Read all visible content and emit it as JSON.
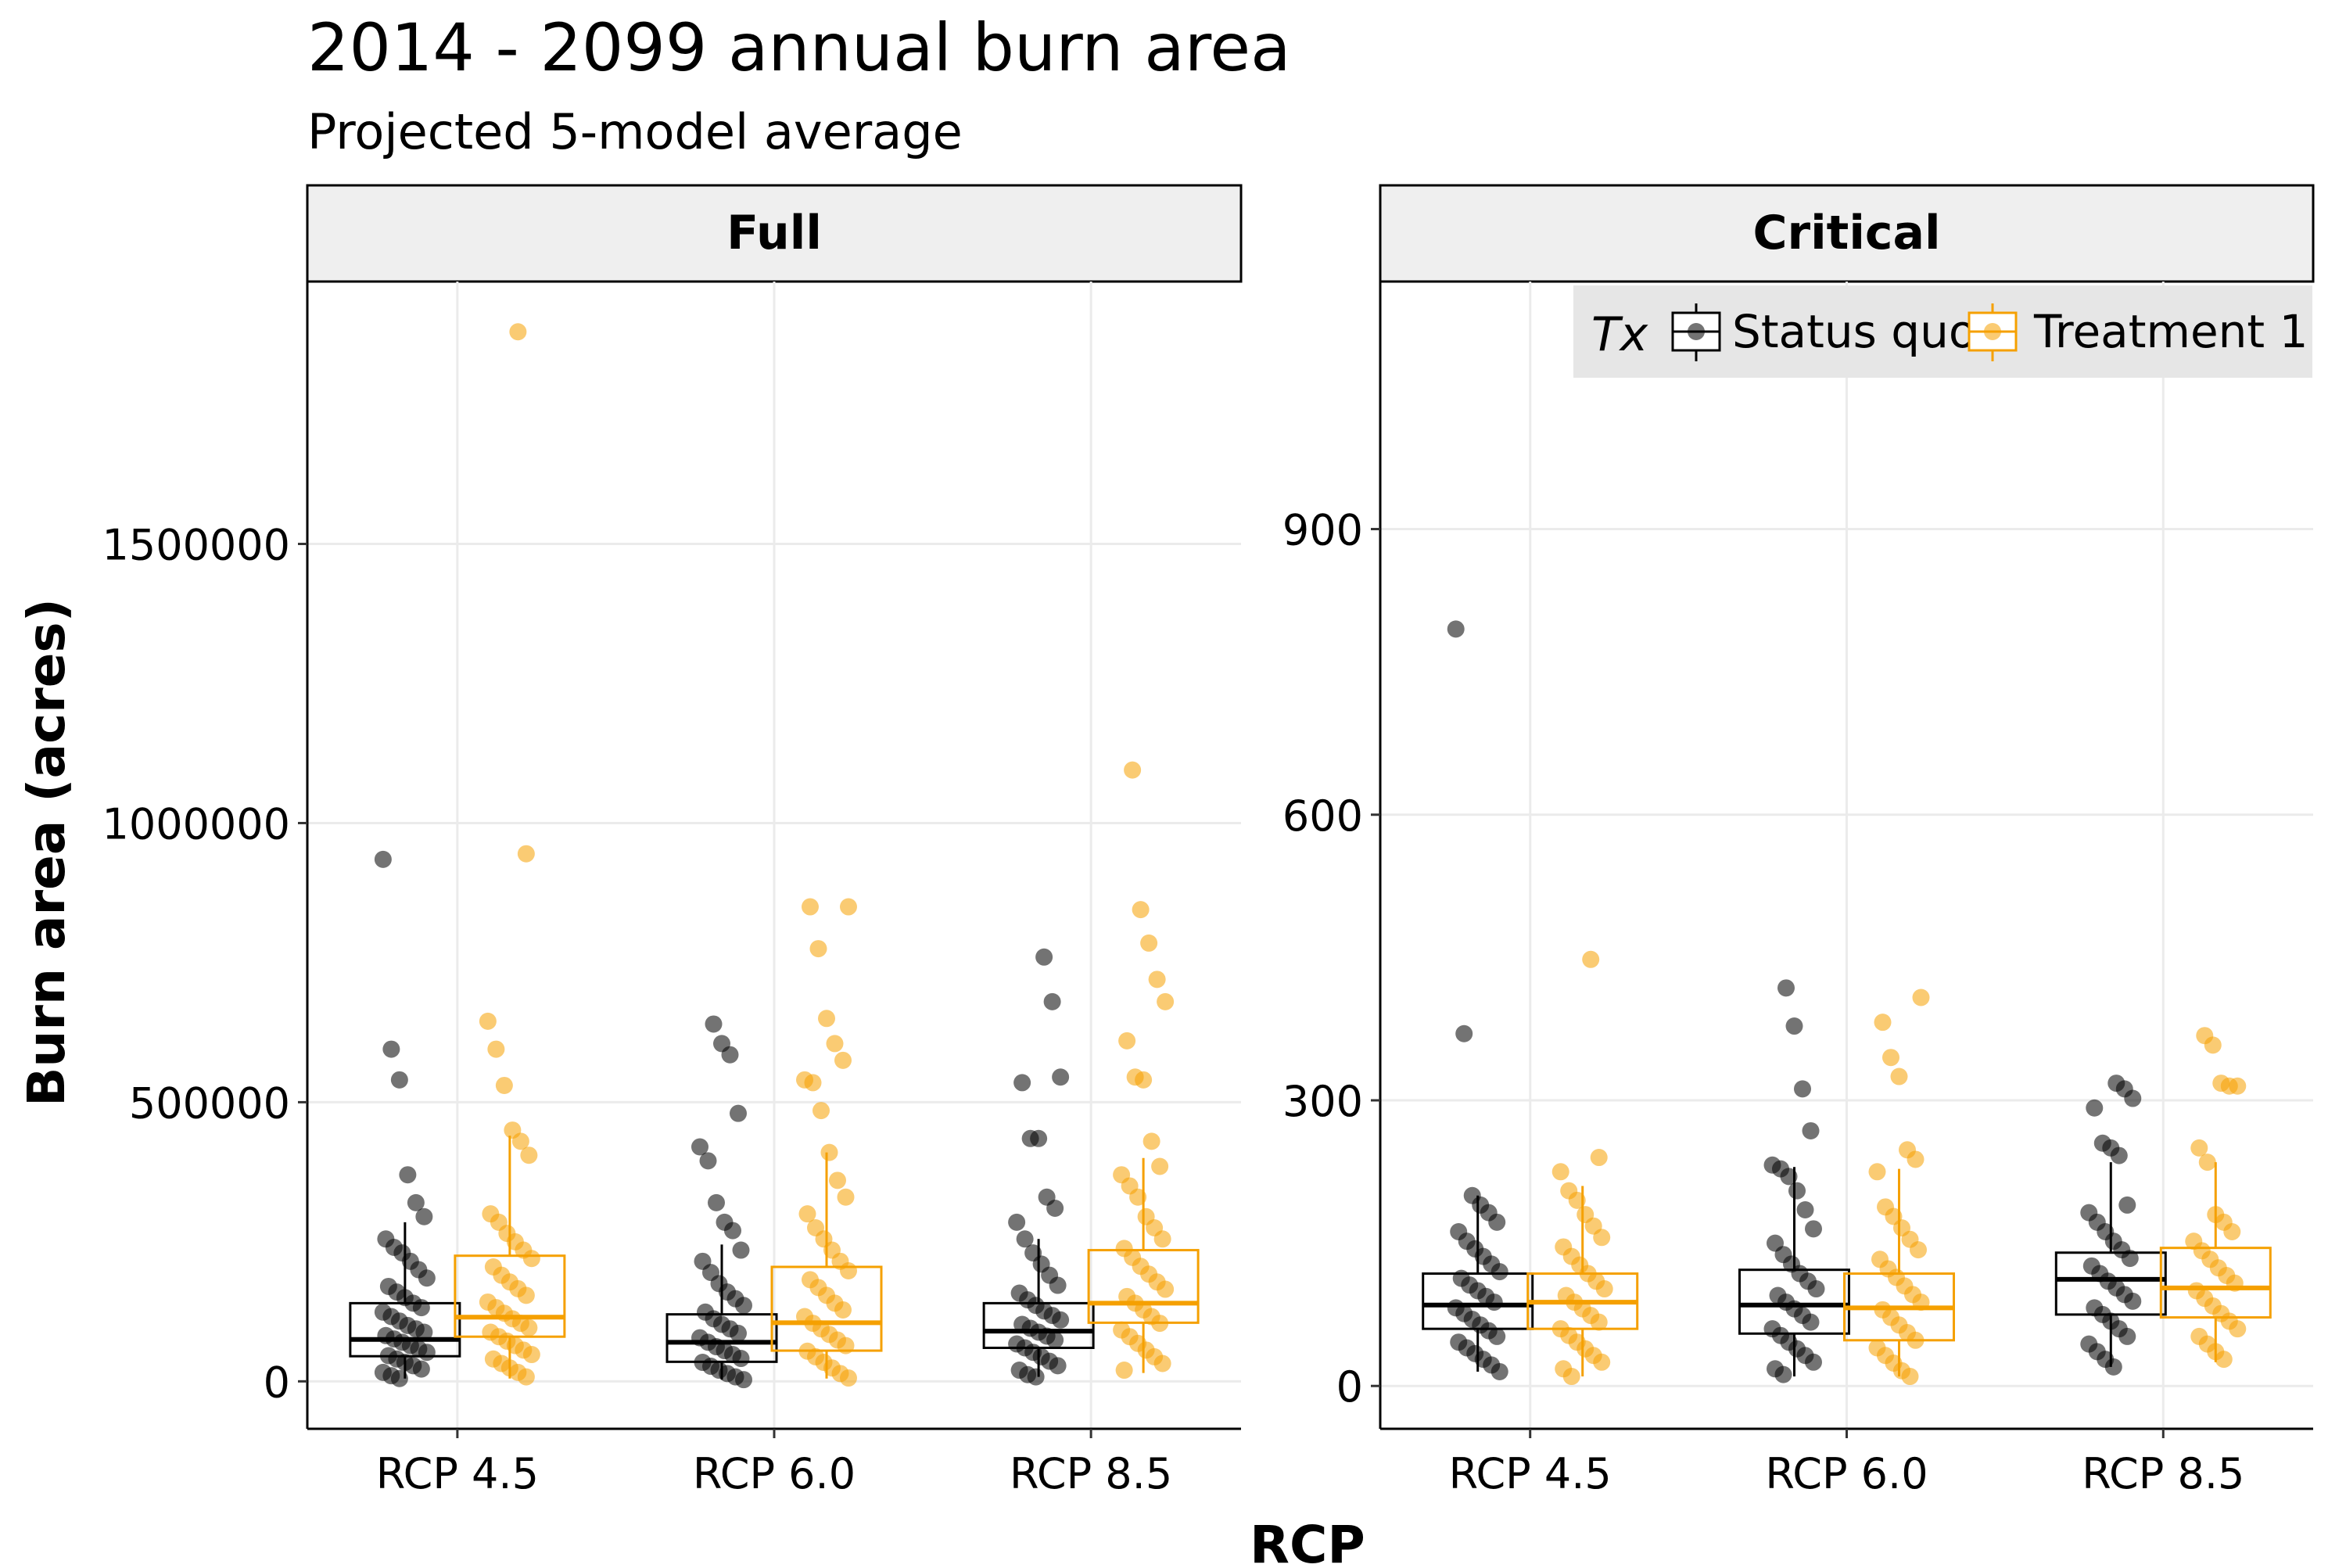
{
  "chart_data": {
    "type": "boxplot",
    "title": "2014 - 2099 annual burn area",
    "subtitle": "Projected 5-model average",
    "xlabel": "RCP",
    "ylabel": "Burn area (acres)",
    "categories": [
      "RCP 4.5",
      "RCP 6.0",
      "RCP 8.5"
    ],
    "legend": {
      "title": "Tx",
      "position": "top-right",
      "entries": [
        {
          "name": "Status quo",
          "color": "#000000"
        },
        {
          "name": "Treatment 1",
          "color": "#f5a000"
        }
      ]
    },
    "grid": true,
    "panels": [
      {
        "label": "Full",
        "ylim": [
          -85000,
          1970000
        ],
        "yticks": [
          0,
          500000,
          1000000,
          1500000
        ],
        "ytick_labels": [
          "0",
          "500000",
          "1000000",
          "1500000"
        ],
        "series": [
          {
            "name": "Status quo",
            "boxes": [
              {
                "category": "RCP 4.5",
                "q1": 45000,
                "median": 75000,
                "q3": 140000,
                "whisker_low": 5000,
                "whisker_high": 285000
              },
              {
                "category": "RCP 6.0",
                "q1": 35000,
                "median": 70000,
                "q3": 120000,
                "whisker_low": 3000,
                "whisker_high": 245000
              },
              {
                "category": "RCP 8.5",
                "q1": 60000,
                "median": 90000,
                "q3": 140000,
                "whisker_low": 8000,
                "whisker_high": 255000
              }
            ],
            "points": [
              {
                "category": "RCP 4.5",
                "values": [
                  935000,
                  595000,
                  540000,
                  370000,
                  320000,
                  295000,
                  255000,
                  240000,
                  230000,
                  215000,
                  200000,
                  185000,
                  170000,
                  160000,
                  150000,
                  140000,
                  132000,
                  124000,
                  116000,
                  108000,
                  100000,
                  94000,
                  88000,
                  82000,
                  76000,
                  70000,
                  64000,
                  58000,
                  52000,
                  46000,
                  40000,
                  34000,
                  28000,
                  22000,
                  16000,
                  10000,
                  5000
                ]
              },
              {
                "category": "RCP 6.0",
                "values": [
                  640000,
                  605000,
                  585000,
                  480000,
                  420000,
                  395000,
                  320000,
                  285000,
                  270000,
                  235000,
                  215000,
                  195000,
                  175000,
                  160000,
                  148000,
                  136000,
                  124000,
                  112000,
                  102000,
                  94000,
                  86000,
                  78000,
                  70000,
                  62000,
                  55000,
                  48000,
                  41000,
                  34000,
                  27000,
                  20000,
                  14000,
                  8000,
                  3000
                ]
              },
              {
                "category": "RCP 8.5",
                "values": [
                  760000,
                  680000,
                  545000,
                  535000,
                  435000,
                  435000,
                  330000,
                  310000,
                  285000,
                  255000,
                  230000,
                  210000,
                  190000,
                  172000,
                  158000,
                  146000,
                  136000,
                  126000,
                  118000,
                  110000,
                  102000,
                  95000,
                  88000,
                  81000,
                  74000,
                  67000,
                  60000,
                  52000,
                  44000,
                  36000,
                  28000,
                  20000,
                  12000,
                  8000
                ]
              }
            ]
          },
          {
            "name": "Treatment 1",
            "boxes": [
              {
                "category": "RCP 4.5",
                "q1": 80000,
                "median": 115000,
                "q3": 225000,
                "whisker_low": 5000,
                "whisker_high": 440000
              },
              {
                "category": "RCP 6.0",
                "q1": 55000,
                "median": 105000,
                "q3": 205000,
                "whisker_low": 5000,
                "whisker_high": 410000
              },
              {
                "category": "RCP 8.5",
                "q1": 105000,
                "median": 140000,
                "q3": 235000,
                "whisker_low": 15000,
                "whisker_high": 400000
              }
            ],
            "points": [
              {
                "category": "RCP 4.5",
                "values": [
                  1880000,
                  945000,
                  645000,
                  595000,
                  530000,
                  450000,
                  430000,
                  405000,
                  300000,
                  285000,
                  265000,
                  250000,
                  235000,
                  220000,
                  205000,
                  190000,
                  178000,
                  166000,
                  154000,
                  142000,
                  132000,
                  122000,
                  112000,
                  104000,
                  96000,
                  88000,
                  80000,
                  72000,
                  64000,
                  56000,
                  48000,
                  40000,
                  32000,
                  24000,
                  16000,
                  8000
                ]
              },
              {
                "category": "RCP 6.0",
                "values": [
                  850000,
                  850000,
                  775000,
                  650000,
                  605000,
                  575000,
                  540000,
                  535000,
                  485000,
                  410000,
                  360000,
                  330000,
                  300000,
                  275000,
                  255000,
                  235000,
                  215000,
                  198000,
                  182000,
                  168000,
                  154000,
                  140000,
                  128000,
                  116000,
                  104000,
                  94000,
                  84000,
                  74000,
                  64000,
                  54000,
                  44000,
                  34000,
                  24000,
                  14000,
                  6000
                ]
              },
              {
                "category": "RCP 8.5",
                "values": [
                  1095000,
                  845000,
                  785000,
                  720000,
                  680000,
                  610000,
                  545000,
                  540000,
                  430000,
                  385000,
                  370000,
                  350000,
                  330000,
                  295000,
                  275000,
                  255000,
                  238000,
                  222000,
                  206000,
                  192000,
                  178000,
                  165000,
                  152000,
                  140000,
                  128000,
                  116000,
                  104000,
                  92000,
                  80000,
                  68000,
                  56000,
                  44000,
                  32000,
                  20000
                ]
              }
            ]
          }
        ]
      },
      {
        "label": "Critical",
        "ylim": [
          -45,
          1160
        ],
        "yticks": [
          0,
          300,
          600,
          900
        ],
        "ytick_labels": [
          "0",
          "300",
          "600",
          "900"
        ],
        "series": [
          {
            "name": "Status quo",
            "boxes": [
              {
                "category": "RCP 4.5",
                "q1": 60,
                "median": 85,
                "q3": 118,
                "whisker_low": 15,
                "whisker_high": 200
              },
              {
                "category": "RCP 6.0",
                "q1": 55,
                "median": 85,
                "q3": 122,
                "whisker_low": 10,
                "whisker_high": 230
              },
              {
                "category": "RCP 8.5",
                "q1": 75,
                "median": 112,
                "q3": 140,
                "whisker_low": 20,
                "whisker_high": 235
              }
            ],
            "points": [
              {
                "category": "RCP 4.5",
                "values": [
                  795,
                  370,
                  200,
                  190,
                  182,
                  172,
                  162,
                  152,
                  144,
                  136,
                  128,
                  120,
                  113,
                  106,
                  100,
                  94,
                  88,
                  82,
                  76,
                  70,
                  64,
                  58,
                  52,
                  46,
                  40,
                  34,
                  28,
                  22,
                  15
                ]
              },
              {
                "category": "RCP 6.0",
                "values": [
                  418,
                  378,
                  312,
                  268,
                  232,
                  228,
                  220,
                  205,
                  185,
                  165,
                  150,
                  138,
                  128,
                  118,
                  110,
                  102,
                  95,
                  88,
                  81,
                  74,
                  67,
                  60,
                  53,
                  46,
                  39,
                  32,
                  25,
                  18,
                  12
                ]
              },
              {
                "category": "RCP 8.5",
                "values": [
                  318,
                  312,
                  302,
                  292,
                  255,
                  250,
                  242,
                  190,
                  182,
                  172,
                  162,
                  152,
                  143,
                  134,
                  126,
                  118,
                  110,
                  103,
                  96,
                  89,
                  82,
                  75,
                  68,
                  60,
                  52,
                  44,
                  36,
                  28,
                  20
                ]
              }
            ]
          },
          {
            "name": "Treatment 1",
            "boxes": [
              {
                "category": "RCP 4.5",
                "q1": 60,
                "median": 88,
                "q3": 118,
                "whisker_low": 10,
                "whisker_high": 210
              },
              {
                "category": "RCP 6.0",
                "q1": 48,
                "median": 82,
                "q3": 118,
                "whisker_low": 10,
                "whisker_high": 228
              },
              {
                "category": "RCP 8.5",
                "q1": 72,
                "median": 103,
                "q3": 145,
                "whisker_low": 25,
                "whisker_high": 235
              }
            ],
            "points": [
              {
                "category": "RCP 4.5",
                "values": [
                  448,
                  240,
                  225,
                  205,
                  195,
                  180,
                  168,
                  156,
                  146,
                  136,
                  127,
                  118,
                  110,
                  102,
                  95,
                  88,
                  81,
                  74,
                  67,
                  60,
                  53,
                  46,
                  39,
                  32,
                  25,
                  18,
                  10
                ]
              },
              {
                "category": "RCP 6.0",
                "values": [
                  408,
                  382,
                  345,
                  325,
                  248,
                  238,
                  225,
                  188,
                  178,
                  166,
                  154,
                  143,
                  133,
                  123,
                  114,
                  105,
                  96,
                  88,
                  80,
                  72,
                  64,
                  56,
                  48,
                  40,
                  32,
                  24,
                  16,
                  10
                ]
              },
              {
                "category": "RCP 8.5",
                "values": [
                  368,
                  358,
                  318,
                  315,
                  315,
                  250,
                  235,
                  180,
                  172,
                  162,
                  152,
                  142,
                  133,
                  124,
                  116,
                  108,
                  100,
                  92,
                  84,
                  76,
                  68,
                  60,
                  52,
                  44,
                  36,
                  28
                ]
              }
            ]
          }
        ]
      }
    ]
  }
}
